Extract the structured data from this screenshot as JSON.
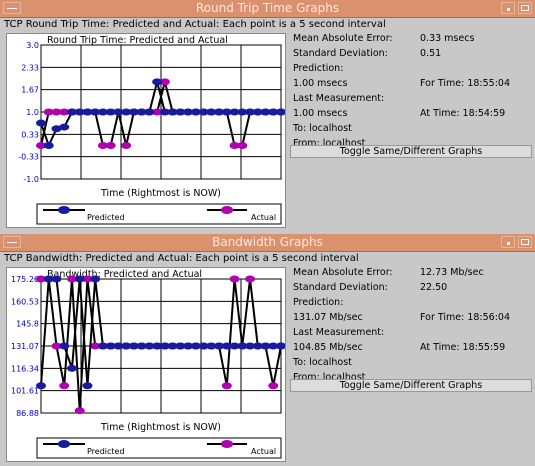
{
  "windows": [
    {
      "title": "Round Trip Time Graphs",
      "heading": "TCP Round Trip Time: Predicted and Actual: Each point is a 5 second interval",
      "stats": {
        "mae_label": "Mean Absolute Error:",
        "mae_value": "0.33 msecs",
        "sd_label": "Standard Deviation:",
        "sd_value": "0.51",
        "prediction_label": "Prediction:",
        "prediction_value": "1.00 msecs",
        "prediction_time": "For Time: 18:55:04",
        "last_label": "Last Measurement:",
        "last_value": "1.00 msecs",
        "last_time": "At Time: 18:54:59",
        "to": "To: localhost",
        "from": "From: localhost"
      },
      "toggle_label": "Toggle Same/Different Graphs"
    },
    {
      "title": "Bandwidth Graphs",
      "heading": "TCP Bandwidth: Predicted and Actual: Each point is a 5 second interval",
      "stats": {
        "mae_label": "Mean Absolute Error:",
        "mae_value": "12.73 Mb/sec",
        "sd_label": "Standard Deviation:",
        "sd_value": "22.50",
        "prediction_label": "Prediction:",
        "prediction_value": "131.07 Mb/sec",
        "prediction_time": "For Time: 18:56:04",
        "last_label": "Last Measurement:",
        "last_value": "104.85 Mb/sec",
        "last_time": "At Time: 18:55:59",
        "to": "To: localhost",
        "from": "From: localhost"
      },
      "toggle_label": "Toggle Same/Different Graphs"
    }
  ],
  "chart_data": [
    {
      "type": "line",
      "title": "Round Trip Time: Predicted and Actual",
      "xlabel": "Time (Rightmost is NOW)",
      "ylabel": "",
      "yticks": [
        "3.0",
        "2.33",
        "1.67",
        "1.0",
        "0.33",
        "-0.33",
        "-1.0"
      ],
      "ylim": [
        -1.0,
        3.0
      ],
      "grid": true,
      "legend": "bottom",
      "colors": {
        "predicted": "#1a1aa0",
        "actual": "#b000b0"
      },
      "series": [
        {
          "name": "Predicted",
          "values": [
            0.67,
            0.0,
            0.5,
            0.55,
            1.0,
            1.0,
            1.0,
            1.0,
            1.0,
            1.0,
            1.0,
            1.0,
            1.0,
            1.0,
            1.0,
            1.9,
            1.0,
            1.0,
            1.0,
            1.0,
            1.0,
            1.0,
            1.0,
            1.0,
            1.0,
            1.0,
            1.0,
            1.0,
            1.0,
            1.0,
            1.0,
            1.0
          ]
        },
        {
          "name": "Actual",
          "values": [
            0.0,
            1.0,
            1.0,
            1.0,
            1.0,
            1.0,
            1.0,
            1.0,
            0.0,
            0.0,
            1.0,
            0.0,
            1.0,
            1.0,
            1.0,
            1.0,
            1.9,
            1.0,
            1.0,
            1.0,
            1.0,
            1.0,
            1.0,
            1.0,
            1.0,
            0.0,
            0.0,
            1.0,
            1.0,
            1.0,
            1.0,
            1.0
          ]
        }
      ]
    },
    {
      "type": "line",
      "title": "Bandwidth: Predicted and Actual",
      "xlabel": "Time (Rightmost is NOW)",
      "ylabel": "",
      "yticks": [
        "175.26",
        "160.53",
        "145.8",
        "131.07",
        "116.34",
        "101.61",
        "86.88"
      ],
      "ylim": [
        86.88,
        175.26
      ],
      "grid": true,
      "legend": "bottom",
      "colors": {
        "predicted": "#1a1aa0",
        "actual": "#b000b0"
      },
      "series": [
        {
          "name": "Predicted",
          "values": [
            104.85,
            175.26,
            175.26,
            131.07,
            116.34,
            175.26,
            104.85,
            175.26,
            131.07,
            131.07,
            131.07,
            131.07,
            131.07,
            131.07,
            131.07,
            131.07,
            131.07,
            131.07,
            131.07,
            131.07,
            131.07,
            131.07,
            131.07,
            131.07,
            131.07,
            131.07,
            131.07,
            131.07,
            131.07,
            131.07,
            131.07,
            131.07
          ]
        },
        {
          "name": "Actual",
          "values": [
            175.26,
            175.26,
            131.07,
            104.85,
            175.26,
            88.4,
            175.26,
            131.07,
            131.07,
            131.07,
            131.07,
            131.07,
            131.07,
            131.07,
            131.07,
            131.07,
            131.07,
            131.07,
            131.07,
            131.07,
            131.07,
            131.07,
            131.07,
            131.07,
            104.85,
            175.26,
            131.07,
            175.26,
            131.07,
            131.07,
            104.85,
            131.07
          ]
        }
      ]
    }
  ]
}
